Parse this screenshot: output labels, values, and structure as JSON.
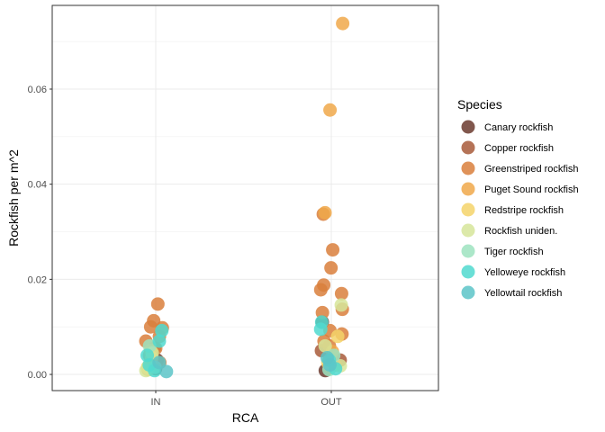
{
  "chart_data": {
    "type": "scatter",
    "xlabel": "RCA",
    "ylabel": "Rockfish per m^2",
    "categories": [
      "IN",
      "OUT"
    ],
    "ylim": [
      -0.0034,
      0.0776
    ],
    "yticks": [
      0.0,
      0.02,
      0.04,
      0.06
    ],
    "ytick_labels": [
      "0.00",
      "0.02",
      "0.04",
      "0.06"
    ],
    "grid": true,
    "legend_position": "right",
    "legend_title": "Species",
    "series": [
      {
        "name": "Canary rockfish",
        "color": "#6b3a2e",
        "points": [
          {
            "x": "IN",
            "y": 0.0012
          },
          {
            "x": "IN",
            "y": 0.003
          },
          {
            "x": "OUT",
            "y": 0.011
          },
          {
            "x": "OUT",
            "y": 0.0008
          }
        ]
      },
      {
        "name": "Copper rockfish",
        "color": "#a85a3a",
        "points": [
          {
            "x": "IN",
            "y": 0.0055
          },
          {
            "x": "IN",
            "y": 0.002
          },
          {
            "x": "OUT",
            "y": 0.005
          },
          {
            "x": "OUT",
            "y": 0.003
          }
        ]
      },
      {
        "name": "Greenstriped rockfish",
        "color": "#d97f3c",
        "points": [
          {
            "x": "IN",
            "y": 0.0148
          },
          {
            "x": "IN",
            "y": 0.0113
          },
          {
            "x": "IN",
            "y": 0.01
          },
          {
            "x": "IN",
            "y": 0.0098
          },
          {
            "x": "IN",
            "y": 0.008
          },
          {
            "x": "IN",
            "y": 0.007
          },
          {
            "x": "IN",
            "y": 0.0055
          },
          {
            "x": "IN",
            "y": 0.004
          },
          {
            "x": "IN",
            "y": 0.0025
          },
          {
            "x": "OUT",
            "y": 0.0337
          },
          {
            "x": "OUT",
            "y": 0.0262
          },
          {
            "x": "OUT",
            "y": 0.0224
          },
          {
            "x": "OUT",
            "y": 0.0188
          },
          {
            "x": "OUT",
            "y": 0.0178
          },
          {
            "x": "OUT",
            "y": 0.017
          },
          {
            "x": "OUT",
            "y": 0.0137
          },
          {
            "x": "OUT",
            "y": 0.013
          },
          {
            "x": "OUT",
            "y": 0.0092
          },
          {
            "x": "OUT",
            "y": 0.0085
          },
          {
            "x": "OUT",
            "y": 0.007
          },
          {
            "x": "OUT",
            "y": 0.006
          },
          {
            "x": "OUT",
            "y": 0.004
          },
          {
            "x": "OUT",
            "y": 0.002
          }
        ]
      },
      {
        "name": "Puget Sound rockfish",
        "color": "#f0a84a",
        "points": [
          {
            "x": "IN",
            "y": 0.005
          },
          {
            "x": "IN",
            "y": 0.001
          },
          {
            "x": "OUT",
            "y": 0.0738
          },
          {
            "x": "OUT",
            "y": 0.0556
          },
          {
            "x": "OUT",
            "y": 0.034
          },
          {
            "x": "OUT",
            "y": 0.0048
          }
        ]
      },
      {
        "name": "Redstripe rockfish",
        "color": "#f5d46a",
        "points": [
          {
            "x": "IN",
            "y": 0.0035
          },
          {
            "x": "IN",
            "y": 0.0015
          },
          {
            "x": "OUT",
            "y": 0.008
          },
          {
            "x": "OUT",
            "y": 0.0025
          }
        ]
      },
      {
        "name": "Rockfish uniden.",
        "color": "#d6e59a",
        "points": [
          {
            "x": "IN",
            "y": 0.0045
          },
          {
            "x": "IN",
            "y": 0.0008
          },
          {
            "x": "OUT",
            "y": 0.0146
          },
          {
            "x": "OUT",
            "y": 0.006
          },
          {
            "x": "OUT",
            "y": 0.0018
          }
        ]
      },
      {
        "name": "Tiger rockfish",
        "color": "#9ee3c0",
        "points": [
          {
            "x": "IN",
            "y": 0.0015
          },
          {
            "x": "IN",
            "y": 0.006
          },
          {
            "x": "OUT",
            "y": 0.004
          },
          {
            "x": "OUT",
            "y": 0.001
          }
        ]
      },
      {
        "name": "Yelloweye rockfish",
        "color": "#50d9cf",
        "points": [
          {
            "x": "IN",
            "y": 0.0092
          },
          {
            "x": "IN",
            "y": 0.007
          },
          {
            "x": "IN",
            "y": 0.004
          },
          {
            "x": "IN",
            "y": 0.002
          },
          {
            "x": "IN",
            "y": 0.0008
          },
          {
            "x": "OUT",
            "y": 0.011
          },
          {
            "x": "OUT",
            "y": 0.0095
          },
          {
            "x": "OUT",
            "y": 0.003
          },
          {
            "x": "OUT",
            "y": 0.0012
          }
        ]
      },
      {
        "name": "Yellowtail rockfish",
        "color": "#5cc4c8",
        "points": [
          {
            "x": "IN",
            "y": 0.0025
          },
          {
            "x": "IN",
            "y": 0.0006
          },
          {
            "x": "OUT",
            "y": 0.0035
          },
          {
            "x": "OUT",
            "y": 0.002
          }
        ]
      }
    ]
  }
}
